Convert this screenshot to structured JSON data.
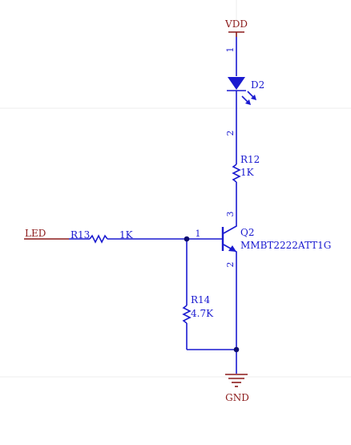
{
  "colors": {
    "wire": "#1a1ad0",
    "net_label": "#8b1a1a",
    "part_text": "#1a1ad0",
    "junction": "#0b0b70",
    "grid": "#ececec",
    "background": "#ffffff"
  },
  "nets": {
    "vdd": "VDD",
    "gnd": "GND",
    "led": "LED"
  },
  "components": {
    "d2": {
      "ref": "D2",
      "pin_top": "1",
      "pin_bottom": "2"
    },
    "r12": {
      "ref": "R12",
      "value": "1K"
    },
    "r13": {
      "ref": "R13",
      "value": "1K"
    },
    "r14": {
      "ref": "R14",
      "value": "4.7K"
    },
    "q2": {
      "ref": "Q2",
      "part": "MMBT2222ATT1G",
      "pin_base": "1",
      "pin_collector": "3",
      "pin_emitter": "2"
    }
  }
}
